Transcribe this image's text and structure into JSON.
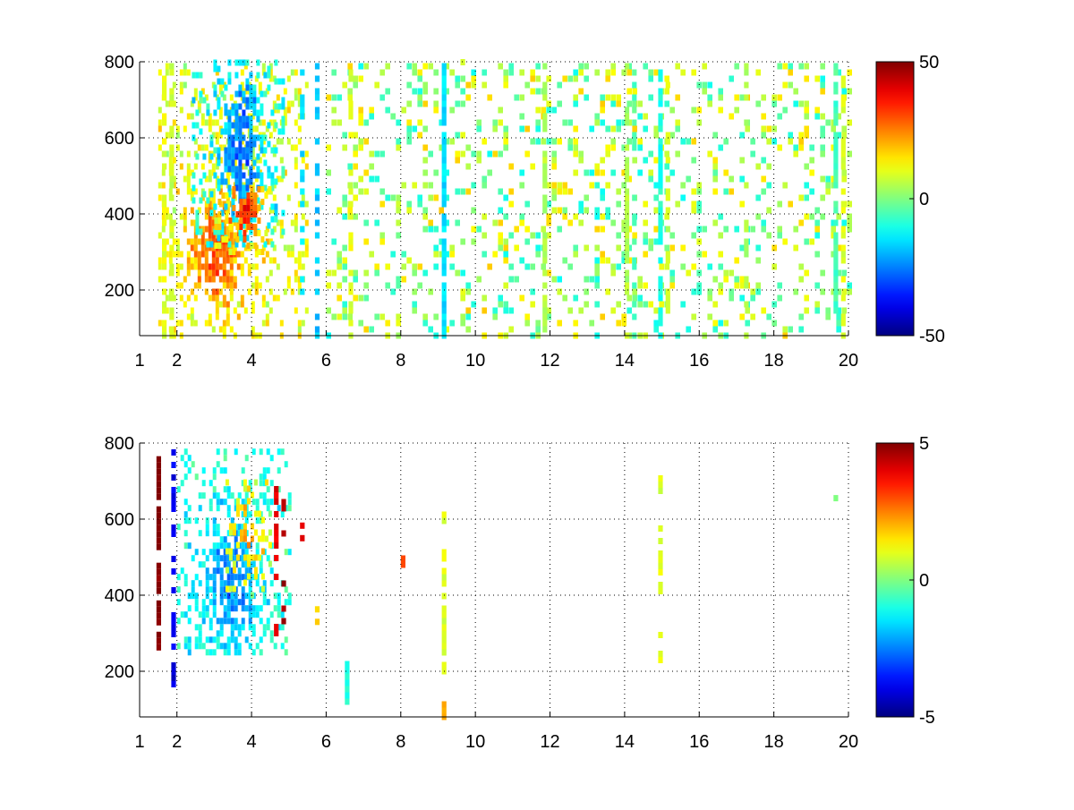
{
  "figure": {
    "background": "#ffffff"
  },
  "chart_data": [
    {
      "type": "heatmap",
      "title": "",
      "xlabel": "",
      "ylabel": "",
      "xlim": [
        1,
        20
      ],
      "ylim": [
        80,
        800
      ],
      "x_ticks": [
        1,
        2,
        4,
        6,
        8,
        10,
        12,
        14,
        16,
        18,
        20
      ],
      "x_tick_labels": [
        "1",
        "2",
        "4",
        "6",
        "8",
        "10",
        "12",
        "14",
        "16",
        "18",
        "20"
      ],
      "y_ticks": [
        200,
        400,
        600,
        800
      ],
      "y_tick_labels": [
        "200",
        "400",
        "600",
        "800"
      ],
      "grid": true,
      "colormap": "jet",
      "colorbar": {
        "min": -50,
        "max": 50,
        "tick_labels": [
          "50",
          "0",
          "-50"
        ]
      },
      "blobs": [
        {
          "x": [
            1.5,
            5.5
          ],
          "y": [
            80,
            800
          ],
          "center": [
            3.0,
            300
          ],
          "spread": [
            0.7,
            140
          ],
          "value": 30,
          "density": 0.95
        },
        {
          "x": [
            2.4,
            4.8
          ],
          "y": [
            320,
            800
          ],
          "center": [
            3.7,
            560
          ],
          "spread": [
            0.5,
            160
          ],
          "value": -30,
          "density": 0.9
        },
        {
          "x": [
            3.0,
            4.5
          ],
          "y": [
            300,
            480
          ],
          "center": [
            3.8,
            400
          ],
          "spread": [
            0.4,
            70
          ],
          "value": 35,
          "density": 0.9
        }
      ],
      "stripes": [
        {
          "x": 1.6,
          "y": [
            80,
            800
          ],
          "value": 10,
          "density": 0.6
        },
        {
          "x": 1.8,
          "y": [
            80,
            800
          ],
          "value": 8,
          "density": 0.6
        },
        {
          "x": 5.3,
          "y": [
            80,
            800
          ],
          "value": -15,
          "density": 0.35
        },
        {
          "x": 5.7,
          "y": [
            80,
            800
          ],
          "value": -18,
          "density": 0.45
        },
        {
          "x": 6.6,
          "y": [
            80,
            800
          ],
          "value": 10,
          "density": 0.5
        },
        {
          "x": 9.1,
          "y": [
            80,
            800
          ],
          "value": -15,
          "density": 0.9
        },
        {
          "x": 9.6,
          "y": [
            700,
            800
          ],
          "value": 8,
          "density": 0.5
        },
        {
          "x": 11.8,
          "y": [
            80,
            800
          ],
          "value": 5,
          "density": 0.45
        },
        {
          "x": 14.0,
          "y": [
            80,
            800
          ],
          "value": 5,
          "density": 0.55
        },
        {
          "x": 14.2,
          "y": [
            80,
            800
          ],
          "value": -5,
          "density": 0.45
        },
        {
          "x": 14.9,
          "y": [
            80,
            800
          ],
          "value": -10,
          "density": 0.75
        },
        {
          "x": 15.1,
          "y": [
            80,
            800
          ],
          "value": 8,
          "density": 0.5
        },
        {
          "x": 17.2,
          "y": [
            80,
            800
          ],
          "value": 5,
          "density": 0.4
        },
        {
          "x": 19.6,
          "y": [
            80,
            800
          ],
          "value": -5,
          "density": 0.75
        },
        {
          "x": 19.8,
          "y": [
            80,
            800
          ],
          "value": 10,
          "density": 0.55
        }
      ],
      "scatter": {
        "x": [
          6,
          20
        ],
        "y": [
          80,
          800
        ],
        "values": [
          -12,
          18
        ],
        "density": 0.22
      }
    },
    {
      "type": "heatmap",
      "title": "",
      "xlabel": "",
      "ylabel": "",
      "xlim": [
        1,
        20
      ],
      "ylim": [
        80,
        800
      ],
      "x_ticks": [
        1,
        2,
        4,
        6,
        8,
        10,
        12,
        14,
        16,
        18,
        20
      ],
      "x_tick_labels": [
        "1",
        "2",
        "4",
        "6",
        "8",
        "10",
        "12",
        "14",
        "16",
        "18",
        "20"
      ],
      "y_ticks": [
        200,
        400,
        600,
        800
      ],
      "y_tick_labels": [
        "200",
        "400",
        "600",
        "800"
      ],
      "grid": true,
      "colormap": "jet",
      "colorbar": {
        "min": -5,
        "max": 5,
        "tick_labels": [
          "5",
          "0",
          "-5"
        ]
      },
      "blobs": [
        {
          "x": [
            2.0,
            5.0
          ],
          "y": [
            250,
            780
          ],
          "center": [
            3.4,
            430
          ],
          "spread": [
            0.8,
            170
          ],
          "value": -2.5,
          "density": 0.85
        },
        {
          "x": [
            3.3,
            4.6
          ],
          "y": [
            400,
            700
          ],
          "center": [
            3.8,
            560
          ],
          "spread": [
            0.4,
            120
          ],
          "value": 2,
          "density": 0.5
        }
      ],
      "stripes": [
        {
          "x": 1.45,
          "y": [
            230,
            780
          ],
          "value": 5,
          "density": 0.8
        },
        {
          "x": 1.85,
          "y": [
            100,
            780
          ],
          "value": -4,
          "density": 0.5
        },
        {
          "x": 4.6,
          "y": [
            300,
            700
          ],
          "value": 4,
          "density": 0.5
        },
        {
          "x": 4.8,
          "y": [
            200,
            700
          ],
          "value": 4.5,
          "density": 0.35
        },
        {
          "x": 5.3,
          "y": [
            550,
            650
          ],
          "value": 4,
          "density": 0.4
        },
        {
          "x": 5.7,
          "y": [
            330,
            380
          ],
          "value": 2,
          "density": 0.5
        },
        {
          "x": 6.5,
          "y": [
            120,
            220
          ],
          "value": -1,
          "density": 0.7
        },
        {
          "x": 8.0,
          "y": [
            480,
            500
          ],
          "value": 3,
          "density": 1.0
        },
        {
          "x": 9.1,
          "y": [
            200,
            620
          ],
          "value": 1,
          "density": 0.7
        },
        {
          "x": 9.1,
          "y": [
            80,
            120
          ],
          "value": 2,
          "density": 0.8
        },
        {
          "x": 14.9,
          "y": [
            180,
            720
          ],
          "value": 1,
          "density": 0.35
        },
        {
          "x": 19.6,
          "y": [
            655,
            665
          ],
          "value": 0,
          "density": 1.0
        }
      ],
      "scatter": null
    }
  ]
}
